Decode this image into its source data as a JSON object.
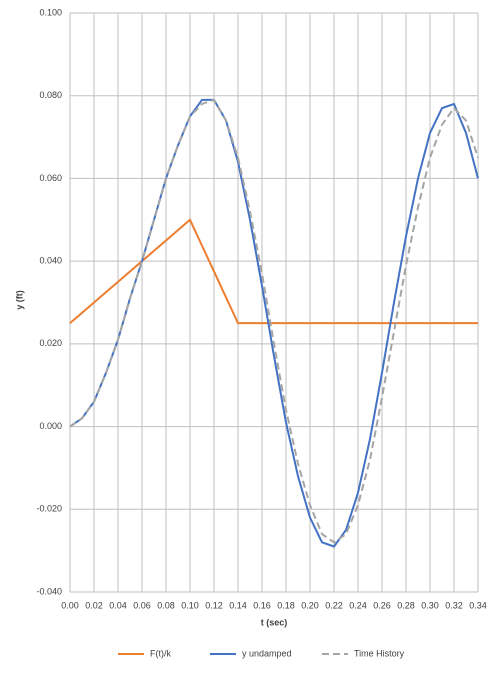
{
  "chart_data": {
    "type": "line",
    "xlabel": "t (sec)",
    "ylabel": "y (ft)",
    "x": [
      0,
      0.01,
      0.02,
      0.03,
      0.04,
      0.05,
      0.06,
      0.07,
      0.08,
      0.09,
      0.1,
      0.11,
      0.12,
      0.13,
      0.14,
      0.15,
      0.16,
      0.17,
      0.18,
      0.19,
      0.2,
      0.21,
      0.22,
      0.23,
      0.24,
      0.25,
      0.26,
      0.27,
      0.28,
      0.29,
      0.3,
      0.31,
      0.32,
      0.33,
      0.34
    ],
    "series": [
      {
        "name": "F(t)/k",
        "color": "#ed7d31",
        "values": [
          0.025,
          0.0275,
          0.03,
          0.0325,
          0.035,
          0.0375,
          0.04,
          0.0425,
          0.045,
          0.0475,
          0.05,
          0.04375,
          0.0375,
          0.03125,
          0.025,
          0.025,
          0.025,
          0.025,
          0.025,
          0.025,
          0.025,
          0.025,
          0.025,
          0.025,
          0.025,
          0.025,
          0.025,
          0.025,
          0.025,
          0.025,
          0.025,
          0.025,
          0.025,
          0.025,
          0.025
        ]
      },
      {
        "name": "y undamped",
        "color": "#4472c4",
        "values": [
          0,
          0.002,
          0.006,
          0.013,
          0.021,
          0.031,
          0.04,
          0.05,
          0.06,
          0.068,
          0.075,
          0.079,
          0.079,
          0.074,
          0.064,
          0.05,
          0.034,
          0.017,
          0.001,
          -0.012,
          -0.022,
          -0.028,
          -0.029,
          -0.025,
          -0.016,
          -0.003,
          0.013,
          0.03,
          0.046,
          0.06,
          0.071,
          0.077,
          0.078,
          0.071,
          0.06
        ]
      },
      {
        "name": "Time History",
        "color": "#a5a5a5",
        "dashed": true,
        "values": [
          0,
          0.002,
          0.006,
          0.013,
          0.021,
          0.031,
          0.04,
          0.05,
          0.06,
          0.068,
          0.075,
          0.078,
          0.079,
          0.074,
          0.065,
          0.052,
          0.037,
          0.02,
          0.004,
          -0.009,
          -0.019,
          -0.026,
          -0.028,
          -0.026,
          -0.019,
          -0.008,
          0.007,
          0.023,
          0.039,
          0.053,
          0.065,
          0.073,
          0.077,
          0.074,
          0.065
        ]
      }
    ],
    "xlim": [
      0,
      0.34
    ],
    "xticks": [
      {
        "value": 0,
        "label": "0.00"
      },
      {
        "value": 0.02,
        "label": "0.02"
      },
      {
        "value": 0.04,
        "label": "0.04"
      },
      {
        "value": 0.06,
        "label": "0.06"
      },
      {
        "value": 0.08,
        "label": "0.08"
      },
      {
        "value": 0.1,
        "label": "0.10"
      },
      {
        "value": 0.12,
        "label": "0.12"
      },
      {
        "value": 0.14,
        "label": "0.14"
      },
      {
        "value": 0.16,
        "label": "0.16"
      },
      {
        "value": 0.18,
        "label": "0.18"
      },
      {
        "value": 0.2,
        "label": "0.20"
      },
      {
        "value": 0.22,
        "label": "0.22"
      },
      {
        "value": 0.24,
        "label": "0.24"
      },
      {
        "value": 0.26,
        "label": "0.26"
      },
      {
        "value": 0.28,
        "label": "0.28"
      },
      {
        "value": 0.3,
        "label": "0.30"
      },
      {
        "value": 0.32,
        "label": "0.32"
      },
      {
        "value": 0.34,
        "label": "0.34"
      }
    ],
    "ylim": [
      -0.04,
      0.1
    ],
    "yticks": [
      {
        "value": -0.04,
        "label": "-0.040"
      },
      {
        "value": -0.02,
        "label": "-0.020"
      },
      {
        "value": 0,
        "label": "0.000"
      },
      {
        "value": 0.02,
        "label": "0.020"
      },
      {
        "value": 0.04,
        "label": "0.040"
      },
      {
        "value": 0.06,
        "label": "0.060"
      },
      {
        "value": 0.08,
        "label": "0.080"
      },
      {
        "value": 0.1,
        "label": "0.100"
      }
    ],
    "grid": true,
    "legend": "bottom"
  }
}
